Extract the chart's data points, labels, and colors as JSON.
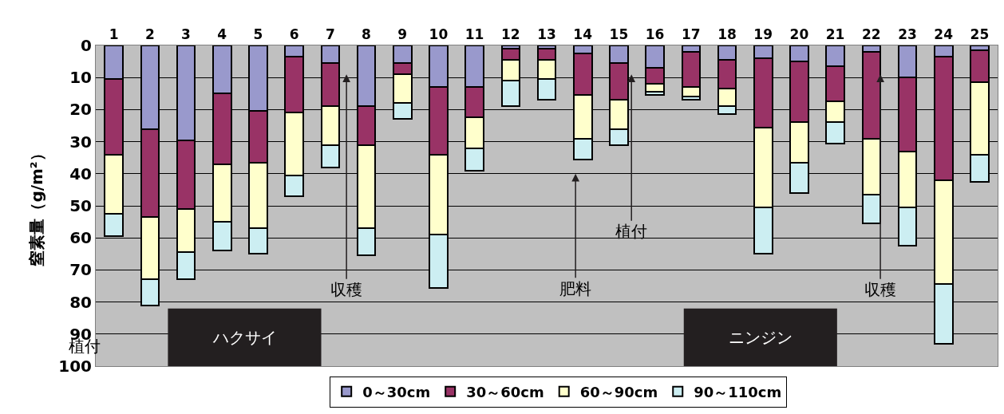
{
  "chart_data": {
    "type": "bar",
    "stacked": true,
    "ylabel": "窒素量（g/m²）",
    "x": [
      1,
      2,
      3,
      4,
      5,
      6,
      7,
      8,
      9,
      10,
      11,
      12,
      13,
      14,
      15,
      16,
      17,
      18,
      19,
      20,
      21,
      22,
      23,
      24,
      25
    ],
    "series": [
      {
        "name": "0～30cm",
        "color": "#9999cc",
        "values": [
          10.5,
          26,
          29.5,
          15,
          20.5,
          3.5,
          5.5,
          19,
          5.5,
          13,
          13,
          1,
          1,
          2.5,
          5.5,
          7,
          2,
          4.5,
          4,
          5,
          6.5,
          2,
          10,
          3.5,
          1.5
        ]
      },
      {
        "name": "30～60cm",
        "color": "#993366",
        "values": [
          23.5,
          27.5,
          21.5,
          22,
          16,
          17.5,
          13.5,
          12,
          3.5,
          21,
          9.5,
          3.5,
          3.5,
          13,
          11.5,
          5,
          11,
          9,
          21.5,
          19,
          11,
          27,
          23,
          38.5,
          10
        ]
      },
      {
        "name": "60～90cm",
        "color": "#ffffcc",
        "values": [
          18.5,
          19.5,
          13.5,
          18,
          20.5,
          19.5,
          12,
          26,
          9,
          25,
          9.5,
          6.5,
          6,
          13.5,
          9,
          2.5,
          3,
          5.5,
          25,
          12.5,
          6.5,
          17.5,
          17.5,
          32.5,
          22.5
        ]
      },
      {
        "name": "90～110cm",
        "color": "#cceef2",
        "values": [
          7,
          8,
          8.5,
          9,
          8,
          6.5,
          7,
          8.5,
          5,
          16.5,
          7,
          8,
          6.5,
          6.5,
          5,
          1,
          1,
          2.5,
          14.5,
          9.5,
          6.5,
          9,
          12,
          18.5,
          8.5
        ]
      }
    ],
    "xlim": [
      0.5,
      25.5
    ],
    "xticks": [
      1,
      2,
      3,
      4,
      5,
      6,
      7,
      8,
      9,
      10,
      11,
      12,
      13,
      14,
      15,
      16,
      17,
      18,
      19,
      20,
      21,
      22,
      23,
      24,
      25
    ],
    "ylim": [
      100,
      0
    ],
    "yticks": [
      0,
      10,
      20,
      30,
      40,
      50,
      60,
      70,
      80,
      90,
      100
    ],
    "grid": "y",
    "legend": "bottom",
    "bands": [
      {
        "axis": "x",
        "from": 2.5,
        "to": 6.75,
        "label": "ハクサイ",
        "color": "#231f20"
      },
      {
        "axis": "x",
        "from": 16.8,
        "to": 21.05,
        "label": "ニンジン",
        "color": "#231f20"
      }
    ],
    "annotations": [
      "収穫",
      "肥料",
      "植付",
      {
        "text": "収穫",
        "x": 22.25,
        "y": 9
      },
      "植付"
    ]
  }
}
